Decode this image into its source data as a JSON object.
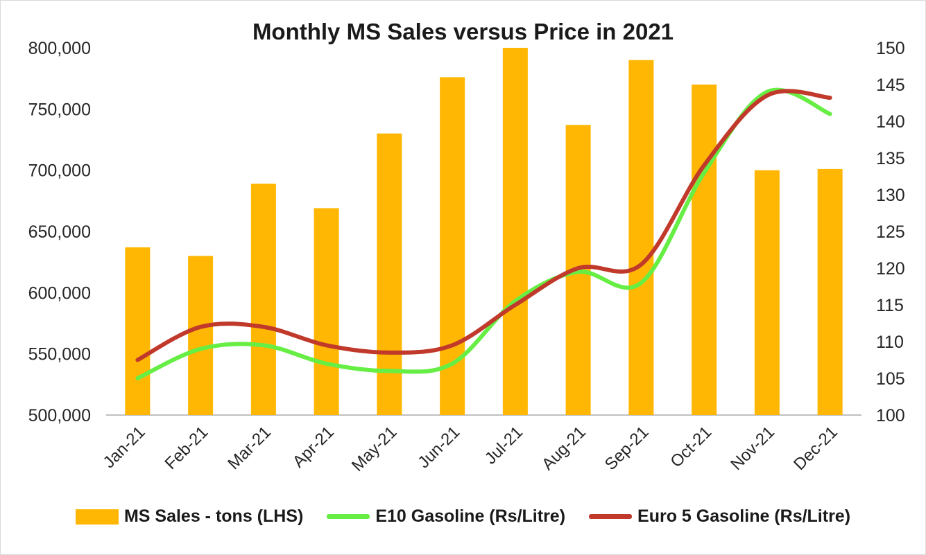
{
  "chart_data": {
    "type": "bar",
    "title": "Monthly MS Sales versus Price in 2021",
    "categories": [
      "Jan-21",
      "Feb-21",
      "Mar-21",
      "Apr-21",
      "May-21",
      "Jun-21",
      "Jul-21",
      "Aug-21",
      "Sep-21",
      "Oct-21",
      "Nov-21",
      "Dec-21"
    ],
    "series": [
      {
        "name": "MS Sales - tons (LHS)",
        "kind": "bar",
        "axis": "left",
        "color": "#ffb703",
        "values": [
          637000,
          630000,
          689000,
          669000,
          730000,
          776000,
          800000,
          737000,
          790000,
          770000,
          700000,
          701000
        ]
      },
      {
        "name": "E10 Gasoline (Rs/Litre)",
        "kind": "line",
        "axis": "right",
        "color": "#66ee44",
        "values": [
          105.0,
          109.0,
          109.5,
          107.0,
          106.0,
          107.0,
          115.5,
          119.5,
          118.0,
          133.0,
          144.0,
          141.0
        ]
      },
      {
        "name": "Euro 5 Gasoline (Rs/Litre)",
        "kind": "line",
        "axis": "right",
        "color": "#c0392b",
        "values": [
          107.5,
          112.0,
          112.0,
          109.5,
          108.5,
          109.5,
          115.0,
          120.0,
          120.5,
          134.0,
          143.5,
          143.2
        ]
      }
    ],
    "y_left": {
      "ylim": [
        500000,
        800000
      ],
      "ticks": [
        500000,
        550000,
        600000,
        650000,
        700000,
        750000,
        800000
      ],
      "tick_labels": [
        "500,000",
        "550,000",
        "600,000",
        "650,000",
        "700,000",
        "750,000",
        "800,000"
      ]
    },
    "y_right": {
      "ylim": [
        100,
        150
      ],
      "ticks": [
        100,
        105,
        110,
        115,
        120,
        125,
        130,
        135,
        140,
        145,
        150
      ],
      "tick_labels": [
        "100",
        "105",
        "110",
        "115",
        "120",
        "125",
        "130",
        "135",
        "140",
        "145",
        "150"
      ]
    },
    "grid": false,
    "legend_position": "bottom"
  }
}
